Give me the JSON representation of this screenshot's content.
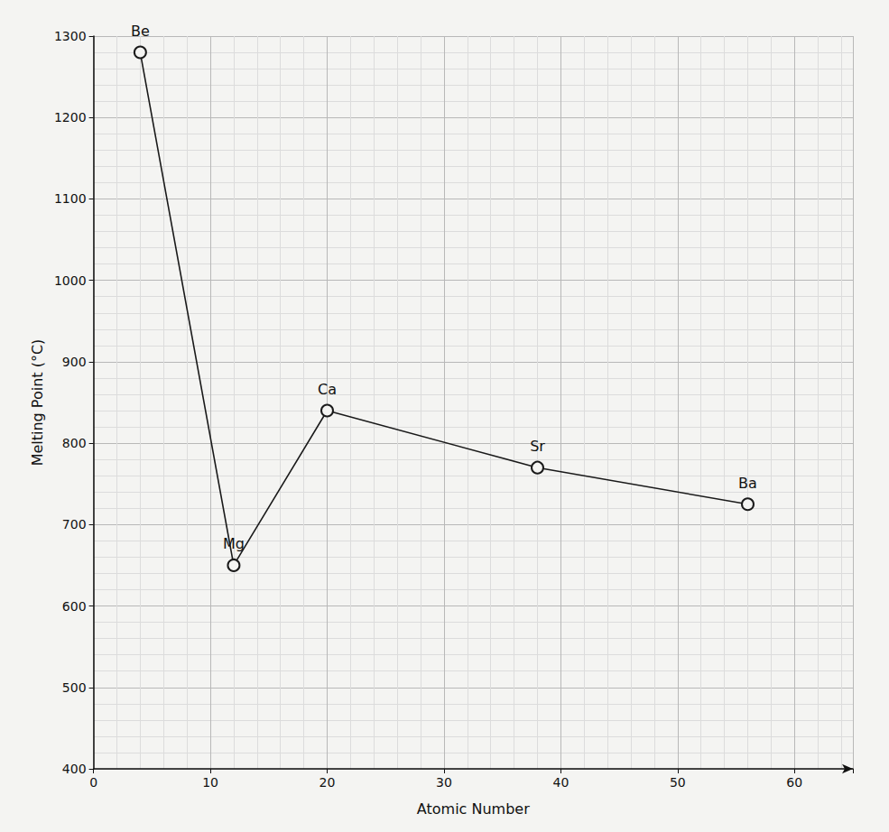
{
  "chart_data": {
    "type": "line",
    "x_label": "Atomic Number",
    "y_label": "Melting Point (°C)",
    "x": [
      4,
      12,
      20,
      38,
      56
    ],
    "values": [
      1280,
      650,
      840,
      770,
      725
    ],
    "point_labels": [
      "Be",
      "Mg",
      "Ca",
      "Sr",
      "Ba"
    ],
    "color": "#1a1a1a",
    "xlim": [
      0,
      65
    ],
    "xticks": [
      0,
      10,
      20,
      30,
      40,
      50,
      60
    ],
    "ylim": [
      400,
      1300
    ],
    "yticks": [
      400,
      500,
      600,
      700,
      800,
      900,
      1000,
      1100,
      1200,
      1300
    ],
    "grid": true,
    "marker": "circle",
    "line_style": "solid"
  }
}
